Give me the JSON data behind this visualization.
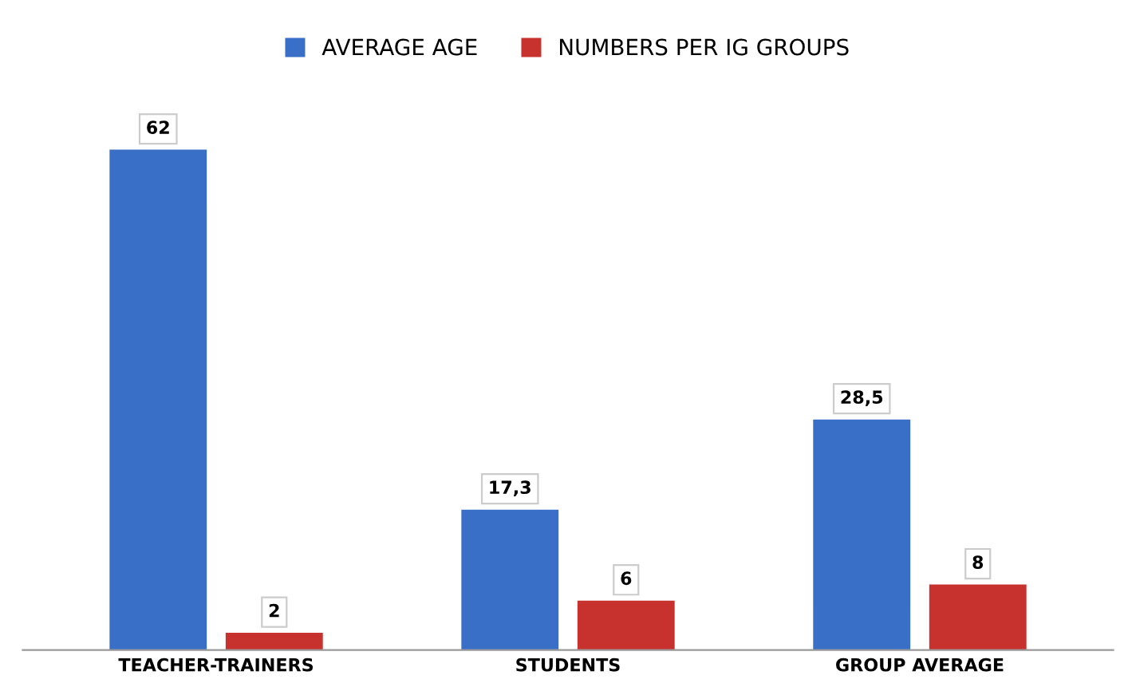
{
  "chart_data": {
    "type": "bar",
    "categories": [
      "TEACHER-TRAINERS",
      "STUDENTS",
      "GROUP AVERAGE"
    ],
    "series": [
      {
        "name": "AVERAGE AGE",
        "color": "#3a6fc8",
        "values": [
          62,
          17.3,
          28.5
        ],
        "value_labels": [
          "62",
          "17,3",
          "28,5"
        ]
      },
      {
        "name": "NUMBERS PER IG GROUPS",
        "color": "#c8322e",
        "values": [
          2,
          6,
          8
        ],
        "value_labels": [
          "2",
          "6",
          "8"
        ]
      }
    ],
    "legend": "top",
    "grid": false
  }
}
